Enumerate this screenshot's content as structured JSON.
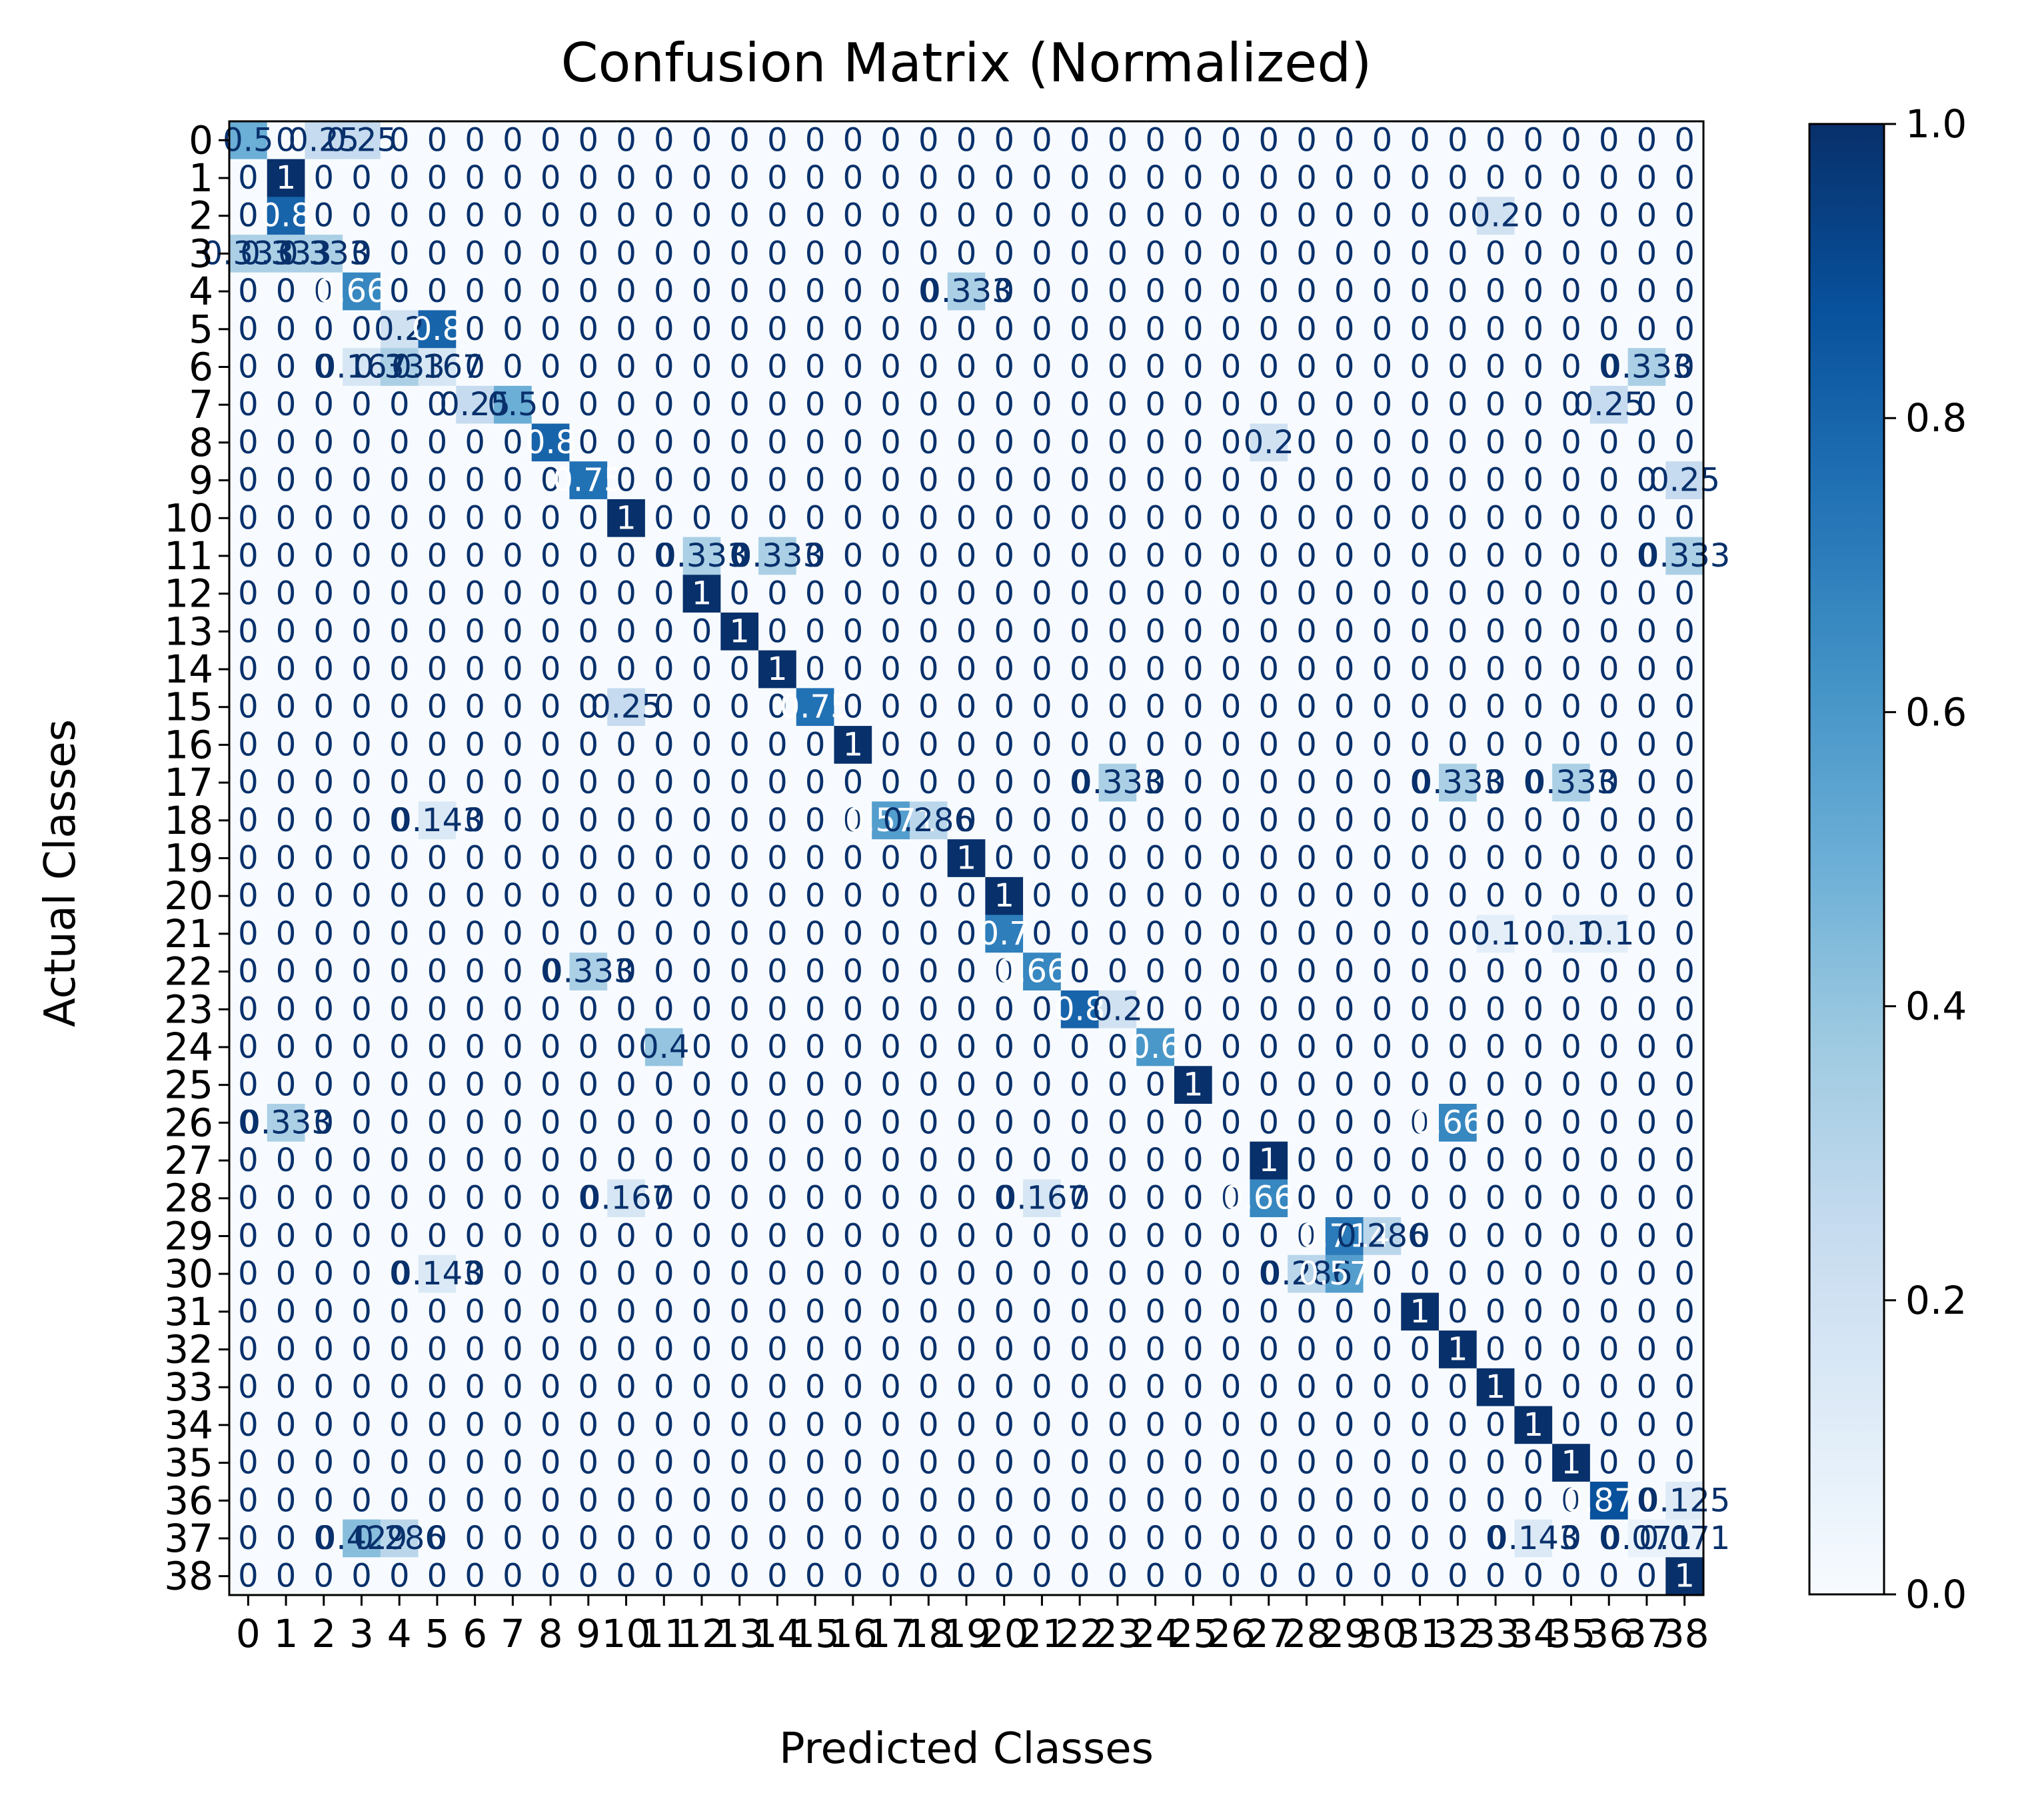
{
  "chart_data": {
    "type": "heatmap",
    "title": "Confusion Matrix (Normalized)",
    "xlabel": "Predicted Classes",
    "ylabel": "Actual Classes",
    "classes": [
      "0",
      "1",
      "2",
      "3",
      "4",
      "5",
      "6",
      "7",
      "8",
      "9",
      "10",
      "11",
      "12",
      "13",
      "14",
      "15",
      "16",
      "17",
      "18",
      "19",
      "20",
      "21",
      "22",
      "23",
      "24",
      "25",
      "26",
      "27",
      "28",
      "29",
      "30",
      "31",
      "32",
      "33",
      "34",
      "35",
      "36",
      "37",
      "38"
    ],
    "colorbar": {
      "min": 0.0,
      "max": 1.0,
      "ticks": [
        "0.0",
        "0.2",
        "0.4",
        "0.6",
        "0.8",
        "1.0"
      ],
      "tick_values": [
        0.0,
        0.2,
        0.4,
        0.6,
        0.8,
        1.0
      ]
    },
    "colormap": [
      "#f7fbff",
      "#deebf7",
      "#c6dbef",
      "#9ecae1",
      "#6baed6",
      "#4292c6",
      "#2171b5",
      "#08519c",
      "#08306b"
    ],
    "cell_text_dark": "#08306b",
    "cell_text_light": "#ffffff",
    "off_diagonal_label": "0",
    "nonzero_entries": [
      {
        "r": 0,
        "c": 0,
        "v": 0.5
      },
      {
        "r": 0,
        "c": 2,
        "v": 0.25
      },
      {
        "r": 0,
        "c": 3,
        "v": 0.25
      },
      {
        "r": 1,
        "c": 1,
        "v": 1.0
      },
      {
        "r": 2,
        "c": 1,
        "v": 0.8
      },
      {
        "r": 2,
        "c": 33,
        "v": 0.2
      },
      {
        "r": 3,
        "c": 0,
        "v": 0.333
      },
      {
        "r": 3,
        "c": 1,
        "v": 0.333
      },
      {
        "r": 3,
        "c": 2,
        "v": 0.333
      },
      {
        "r": 4,
        "c": 3,
        "v": 0.667
      },
      {
        "r": 4,
        "c": 19,
        "v": 0.333
      },
      {
        "r": 5,
        "c": 4,
        "v": 0.2
      },
      {
        "r": 5,
        "c": 5,
        "v": 0.8
      },
      {
        "r": 6,
        "c": 3,
        "v": 0.167
      },
      {
        "r": 6,
        "c": 4,
        "v": 0.333
      },
      {
        "r": 6,
        "c": 5,
        "v": 0.167
      },
      {
        "r": 6,
        "c": 37,
        "v": 0.333
      },
      {
        "r": 7,
        "c": 6,
        "v": 0.25
      },
      {
        "r": 7,
        "c": 7,
        "v": 0.5
      },
      {
        "r": 7,
        "c": 36,
        "v": 0.25
      },
      {
        "r": 8,
        "c": 8,
        "v": 0.8
      },
      {
        "r": 8,
        "c": 27,
        "v": 0.2
      },
      {
        "r": 9,
        "c": 9,
        "v": 0.75
      },
      {
        "r": 9,
        "c": 38,
        "v": 0.25
      },
      {
        "r": 10,
        "c": 10,
        "v": 1.0
      },
      {
        "r": 11,
        "c": 12,
        "v": 0.333
      },
      {
        "r": 11,
        "c": 14,
        "v": 0.333
      },
      {
        "r": 11,
        "c": 38,
        "v": 0.333
      },
      {
        "r": 12,
        "c": 12,
        "v": 1.0
      },
      {
        "r": 13,
        "c": 13,
        "v": 1.0
      },
      {
        "r": 14,
        "c": 14,
        "v": 1.0
      },
      {
        "r": 15,
        "c": 10,
        "v": 0.25
      },
      {
        "r": 15,
        "c": 15,
        "v": 0.75
      },
      {
        "r": 16,
        "c": 16,
        "v": 1.0
      },
      {
        "r": 17,
        "c": 23,
        "v": 0.333
      },
      {
        "r": 17,
        "c": 32,
        "v": 0.333
      },
      {
        "r": 17,
        "c": 35,
        "v": 0.333
      },
      {
        "r": 18,
        "c": 5,
        "v": 0.143
      },
      {
        "r": 18,
        "c": 17,
        "v": 0.571
      },
      {
        "r": 18,
        "c": 18,
        "v": 0.286
      },
      {
        "r": 19,
        "c": 19,
        "v": 1.0
      },
      {
        "r": 20,
        "c": 20,
        "v": 1.0
      },
      {
        "r": 21,
        "c": 20,
        "v": 0.7
      },
      {
        "r": 21,
        "c": 33,
        "v": 0.1
      },
      {
        "r": 21,
        "c": 35,
        "v": 0.1
      },
      {
        "r": 21,
        "c": 36,
        "v": 0.1
      },
      {
        "r": 22,
        "c": 9,
        "v": 0.333
      },
      {
        "r": 22,
        "c": 21,
        "v": 0.667
      },
      {
        "r": 23,
        "c": 22,
        "v": 0.8
      },
      {
        "r": 23,
        "c": 23,
        "v": 0.2
      },
      {
        "r": 24,
        "c": 11,
        "v": 0.4
      },
      {
        "r": 24,
        "c": 24,
        "v": 0.6
      },
      {
        "r": 25,
        "c": 25,
        "v": 1.0
      },
      {
        "r": 26,
        "c": 1,
        "v": 0.333
      },
      {
        "r": 26,
        "c": 32,
        "v": 0.667
      },
      {
        "r": 27,
        "c": 27,
        "v": 1.0
      },
      {
        "r": 28,
        "c": 10,
        "v": 0.167
      },
      {
        "r": 28,
        "c": 21,
        "v": 0.167
      },
      {
        "r": 28,
        "c": 27,
        "v": 0.667
      },
      {
        "r": 29,
        "c": 29,
        "v": 0.714
      },
      {
        "r": 29,
        "c": 30,
        "v": 0.286
      },
      {
        "r": 30,
        "c": 5,
        "v": 0.143
      },
      {
        "r": 30,
        "c": 28,
        "v": 0.286
      },
      {
        "r": 30,
        "c": 29,
        "v": 0.571
      },
      {
        "r": 31,
        "c": 31,
        "v": 1.0
      },
      {
        "r": 32,
        "c": 32,
        "v": 1.0
      },
      {
        "r": 33,
        "c": 33,
        "v": 1.0
      },
      {
        "r": 34,
        "c": 34,
        "v": 1.0
      },
      {
        "r": 35,
        "c": 35,
        "v": 1.0
      },
      {
        "r": 36,
        "c": 36,
        "v": 0.875
      },
      {
        "r": 36,
        "c": 38,
        "v": 0.125
      },
      {
        "r": 37,
        "c": 3,
        "v": 0.429
      },
      {
        "r": 37,
        "c": 4,
        "v": 0.286
      },
      {
        "r": 37,
        "c": 34,
        "v": 0.143
      },
      {
        "r": 37,
        "c": 37,
        "v": 0.071
      },
      {
        "r": 37,
        "c": 38,
        "v": 0.071
      },
      {
        "r": 38,
        "c": 38,
        "v": 1.0
      }
    ]
  }
}
